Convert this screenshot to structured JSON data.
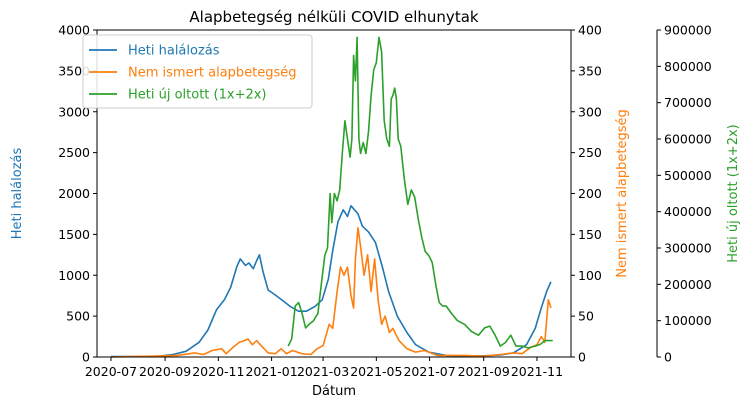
{
  "chart_data": {
    "type": "line",
    "title": "Alapbetegség nélküli COVID elhunytak",
    "xlabel": "Dátum",
    "x_ticks": [
      "2020-07",
      "2020-09",
      "2020-11",
      "2021-01",
      "2021-03",
      "2021-05",
      "2021-07",
      "2021-09",
      "2021-11"
    ],
    "x_range": [
      "2020-06-15",
      "2021-12-10"
    ],
    "grid": false,
    "legend_position": "top-left",
    "axes": [
      {
        "id": "left",
        "label": "Heti halálozás",
        "color": "#1f77b4",
        "ylim": [
          0,
          4000
        ],
        "ticks": [
          "0",
          "500",
          "1000",
          "1500",
          "2000",
          "2500",
          "3000",
          "3500",
          "4000"
        ]
      },
      {
        "id": "right1",
        "label": "Nem ismert alapbetegség",
        "color": "#ff7f0e",
        "ylim": [
          0,
          400
        ],
        "ticks": [
          "0",
          "50",
          "100",
          "150",
          "200",
          "250",
          "300",
          "350",
          "400"
        ]
      },
      {
        "id": "right2",
        "label": "Heti új oltott (1x+2x)",
        "color": "#2ca02c",
        "ylim": [
          0,
          900000
        ],
        "ticks": [
          "0",
          "100000",
          "200000",
          "300000",
          "400000",
          "500000",
          "600000",
          "700000",
          "800000",
          "900000"
        ]
      }
    ],
    "series": [
      {
        "name": "Heti halálozás",
        "axis": "left",
        "color": "#1f77b4",
        "points": [
          [
            "2020-07-01",
            5
          ],
          [
            "2020-08-01",
            5
          ],
          [
            "2020-08-25",
            10
          ],
          [
            "2020-09-10",
            30
          ],
          [
            "2020-09-25",
            70
          ],
          [
            "2020-10-10",
            180
          ],
          [
            "2020-10-20",
            330
          ],
          [
            "2020-10-30",
            580
          ],
          [
            "2020-11-08",
            700
          ],
          [
            "2020-11-15",
            850
          ],
          [
            "2020-11-22",
            1100
          ],
          [
            "2020-11-26",
            1200
          ],
          [
            "2020-12-02",
            1120
          ],
          [
            "2020-12-06",
            1150
          ],
          [
            "2020-12-11",
            1080
          ],
          [
            "2020-12-15",
            1180
          ],
          [
            "2020-12-18",
            1250
          ],
          [
            "2020-12-22",
            1050
          ],
          [
            "2020-12-28",
            820
          ],
          [
            "2021-01-05",
            760
          ],
          [
            "2021-01-15",
            680
          ],
          [
            "2021-01-22",
            620
          ],
          [
            "2021-02-01",
            560
          ],
          [
            "2021-02-10",
            560
          ],
          [
            "2021-02-20",
            620
          ],
          [
            "2021-02-28",
            700
          ],
          [
            "2021-03-07",
            950
          ],
          [
            "2021-03-12",
            1300
          ],
          [
            "2021-03-18",
            1650
          ],
          [
            "2021-03-24",
            1800
          ],
          [
            "2021-03-29",
            1720
          ],
          [
            "2021-04-02",
            1850
          ],
          [
            "2021-04-06",
            1800
          ],
          [
            "2021-04-10",
            1750
          ],
          [
            "2021-04-15",
            1600
          ],
          [
            "2021-04-22",
            1530
          ],
          [
            "2021-04-30",
            1400
          ],
          [
            "2021-05-08",
            1100
          ],
          [
            "2021-05-15",
            800
          ],
          [
            "2021-05-25",
            500
          ],
          [
            "2021-06-05",
            300
          ],
          [
            "2021-06-15",
            150
          ],
          [
            "2021-06-30",
            60
          ],
          [
            "2021-07-20",
            20
          ],
          [
            "2021-08-15",
            10
          ],
          [
            "2021-09-01",
            15
          ],
          [
            "2021-09-20",
            25
          ],
          [
            "2021-10-05",
            50
          ],
          [
            "2021-10-20",
            150
          ],
          [
            "2021-10-30",
            350
          ],
          [
            "2021-11-06",
            600
          ],
          [
            "2021-11-12",
            800
          ],
          [
            "2021-11-17",
            920
          ]
        ]
      },
      {
        "name": "Nem ismert alapbetegség",
        "axis": "right1",
        "color": "#ff7f0e",
        "points": [
          [
            "2020-07-01",
            0
          ],
          [
            "2020-08-15",
            1
          ],
          [
            "2020-09-15",
            2
          ],
          [
            "2020-10-05",
            5
          ],
          [
            "2020-10-15",
            3
          ],
          [
            "2020-10-25",
            8
          ],
          [
            "2020-11-05",
            10
          ],
          [
            "2020-11-10",
            4
          ],
          [
            "2020-11-18",
            12
          ],
          [
            "2020-11-25",
            18
          ],
          [
            "2020-12-01",
            20
          ],
          [
            "2020-12-05",
            22
          ],
          [
            "2020-12-10",
            15
          ],
          [
            "2020-12-15",
            20
          ],
          [
            "2020-12-20",
            14
          ],
          [
            "2020-12-28",
            5
          ],
          [
            "2021-01-05",
            4
          ],
          [
            "2021-01-12",
            10
          ],
          [
            "2021-01-18",
            4
          ],
          [
            "2021-01-25",
            8
          ],
          [
            "2021-02-05",
            4
          ],
          [
            "2021-02-15",
            3
          ],
          [
            "2021-02-22",
            10
          ],
          [
            "2021-03-01",
            14
          ],
          [
            "2021-03-08",
            40
          ],
          [
            "2021-03-12",
            35
          ],
          [
            "2021-03-17",
            80
          ],
          [
            "2021-03-21",
            110
          ],
          [
            "2021-03-25",
            100
          ],
          [
            "2021-03-29",
            110
          ],
          [
            "2021-04-02",
            75
          ],
          [
            "2021-04-05",
            60
          ],
          [
            "2021-04-07",
            120
          ],
          [
            "2021-04-10",
            158
          ],
          [
            "2021-04-13",
            135
          ],
          [
            "2021-04-17",
            100
          ],
          [
            "2021-04-21",
            125
          ],
          [
            "2021-04-25",
            80
          ],
          [
            "2021-04-29",
            120
          ],
          [
            "2021-05-03",
            70
          ],
          [
            "2021-05-07",
            40
          ],
          [
            "2021-05-11",
            50
          ],
          [
            "2021-05-16",
            30
          ],
          [
            "2021-05-20",
            35
          ],
          [
            "2021-05-27",
            20
          ],
          [
            "2021-06-05",
            10
          ],
          [
            "2021-06-15",
            6
          ],
          [
            "2021-06-25",
            8
          ],
          [
            "2021-07-10",
            2
          ],
          [
            "2021-08-10",
            2
          ],
          [
            "2021-09-01",
            1
          ],
          [
            "2021-09-20",
            3
          ],
          [
            "2021-10-05",
            5
          ],
          [
            "2021-10-15",
            4
          ],
          [
            "2021-10-25",
            12
          ],
          [
            "2021-11-01",
            15
          ],
          [
            "2021-11-06",
            25
          ],
          [
            "2021-11-10",
            18
          ],
          [
            "2021-11-14",
            70
          ],
          [
            "2021-11-17",
            60
          ]
        ]
      },
      {
        "name": "Heti új oltott (1x+2x)",
        "axis": "right2",
        "color": "#2ca02c",
        "points": [
          [
            "2021-01-20",
            30000
          ],
          [
            "2021-01-24",
            50000
          ],
          [
            "2021-01-28",
            140000
          ],
          [
            "2021-02-01",
            150000
          ],
          [
            "2021-02-05",
            120000
          ],
          [
            "2021-02-09",
            80000
          ],
          [
            "2021-02-13",
            90000
          ],
          [
            "2021-02-18",
            100000
          ],
          [
            "2021-02-23",
            120000
          ],
          [
            "2021-02-27",
            200000
          ],
          [
            "2021-03-03",
            280000
          ],
          [
            "2021-03-06",
            300000
          ],
          [
            "2021-03-09",
            450000
          ],
          [
            "2021-03-11",
            370000
          ],
          [
            "2021-03-14",
            450000
          ],
          [
            "2021-03-17",
            430000
          ],
          [
            "2021-03-20",
            460000
          ],
          [
            "2021-03-23",
            560000
          ],
          [
            "2021-03-26",
            650000
          ],
          [
            "2021-03-29",
            600000
          ],
          [
            "2021-04-01",
            550000
          ],
          [
            "2021-04-03",
            600000
          ],
          [
            "2021-04-05",
            830000
          ],
          [
            "2021-04-07",
            760000
          ],
          [
            "2021-04-09",
            880000
          ],
          [
            "2021-04-11",
            600000
          ],
          [
            "2021-04-13",
            560000
          ],
          [
            "2021-04-16",
            590000
          ],
          [
            "2021-04-19",
            560000
          ],
          [
            "2021-04-22",
            620000
          ],
          [
            "2021-04-25",
            720000
          ],
          [
            "2021-04-28",
            790000
          ],
          [
            "2021-05-01",
            810000
          ],
          [
            "2021-05-04",
            880000
          ],
          [
            "2021-05-07",
            840000
          ],
          [
            "2021-05-10",
            650000
          ],
          [
            "2021-05-13",
            600000
          ],
          [
            "2021-05-16",
            580000
          ],
          [
            "2021-05-18",
            710000
          ],
          [
            "2021-05-20",
            720000
          ],
          [
            "2021-05-22",
            740000
          ],
          [
            "2021-05-24",
            710000
          ],
          [
            "2021-05-26",
            600000
          ],
          [
            "2021-05-29",
            580000
          ],
          [
            "2021-06-02",
            490000
          ],
          [
            "2021-06-06",
            420000
          ],
          [
            "2021-06-10",
            460000
          ],
          [
            "2021-06-14",
            440000
          ],
          [
            "2021-06-18",
            380000
          ],
          [
            "2021-06-22",
            330000
          ],
          [
            "2021-06-26",
            290000
          ],
          [
            "2021-06-30",
            280000
          ],
          [
            "2021-07-04",
            260000
          ],
          [
            "2021-07-08",
            200000
          ],
          [
            "2021-07-12",
            150000
          ],
          [
            "2021-07-16",
            140000
          ],
          [
            "2021-07-20",
            140000
          ],
          [
            "2021-07-26",
            120000
          ],
          [
            "2021-08-02",
            100000
          ],
          [
            "2021-08-10",
            90000
          ],
          [
            "2021-08-18",
            70000
          ],
          [
            "2021-08-26",
            60000
          ],
          [
            "2021-09-02",
            80000
          ],
          [
            "2021-09-08",
            85000
          ],
          [
            "2021-09-14",
            60000
          ],
          [
            "2021-09-20",
            30000
          ],
          [
            "2021-09-26",
            40000
          ],
          [
            "2021-10-02",
            60000
          ],
          [
            "2021-10-08",
            30000
          ],
          [
            "2021-10-15",
            30000
          ],
          [
            "2021-10-22",
            25000
          ],
          [
            "2021-10-30",
            30000
          ],
          [
            "2021-11-05",
            35000
          ],
          [
            "2021-11-10",
            45000
          ],
          [
            "2021-11-15",
            45000
          ],
          [
            "2021-11-19",
            45000
          ]
        ]
      }
    ]
  }
}
